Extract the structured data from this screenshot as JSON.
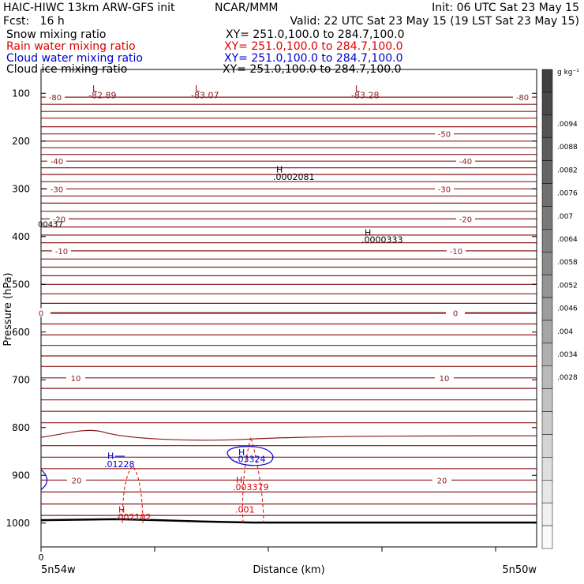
{
  "header": {
    "title": "HAIC-HIWC 13km ARW-GFS init",
    "org": "NCAR/MMM",
    "init": "Init: 06 UTC Sat 23 May 15",
    "fcst": "Fcst:   16 h",
    "valid": "Valid: 22 UTC Sat 23 May 15 (19 LST Sat 23 May 15)"
  },
  "fields": [
    {
      "name": "Snow mixing ratio",
      "xy": "XY= 251.0,100.0 to 284.7,100.0",
      "color": "#000000"
    },
    {
      "name": "Rain water mixing ratio",
      "xy": "XY= 251.0,100.0 to 284.7,100.0",
      "color": "#dd0000"
    },
    {
      "name": "Cloud water mixing ratio",
      "xy": "XY= 251.0,100.0 to 284.7,100.0",
      "color": "#0000cc"
    },
    {
      "name": "Cloud ice mixing ratio",
      "xy": "XY= 251.0,100.0 to 284.7,100.0",
      "color": "#000000"
    }
  ],
  "colorbar": {
    "unit": "g kg⁻¹",
    "labels": [
      ".0094",
      ".0088",
      ".0082",
      ".0076",
      ".007",
      ".0064",
      ".0058",
      ".0052",
      ".0046",
      ".004",
      ".0034",
      ".0028"
    ]
  },
  "chart_data": {
    "type": "line",
    "xlabel": "Distance (km)",
    "ylabel": "Pressure (hPa)",
    "x_left_label": "5n54w",
    "x_right_label": "5n50w",
    "x_zero_label": "0",
    "y_ticks": [
      100,
      200,
      300,
      400,
      500,
      600,
      700,
      800,
      900,
      1000
    ],
    "ylim": [
      1050,
      50
    ],
    "temperature_contour_labels": [
      {
        "text": "-80",
        "p": 108
      },
      {
        "text": "-80",
        "p": 108
      },
      {
        "text": "-50",
        "p": 185
      },
      {
        "text": "-40",
        "p": 242
      },
      {
        "text": "-40",
        "p": 242
      },
      {
        "text": "-30",
        "p": 300
      },
      {
        "text": "-30",
        "p": 300
      },
      {
        "text": "-20",
        "p": 363
      },
      {
        "text": "-20",
        "p": 363
      },
      {
        "text": "-10",
        "p": 430
      },
      {
        "text": "-10",
        "p": 430
      },
      {
        "text": "0",
        "p": 560
      },
      {
        "text": "0",
        "p": 560
      },
      {
        "text": "10",
        "p": 696
      },
      {
        "text": "10",
        "p": 696
      },
      {
        "text": "20",
        "p": 910
      },
      {
        "text": "20",
        "p": 910
      }
    ],
    "lows": [
      {
        "label": "L",
        "value": "-82.89"
      },
      {
        "label": "L",
        "value": "-83.07"
      },
      {
        "label": "L",
        "value": "-83.28"
      }
    ],
    "highs": [
      {
        "label": "H",
        "value": ".0002081",
        "field": "snow"
      },
      {
        "label": "H",
        "value": ".0000333",
        "field": "snow"
      },
      {
        "label": "H",
        "value": ".01228",
        "field": "cloud water"
      },
      {
        "label": "H",
        "value": ".03324",
        "field": "cloud water"
      },
      {
        "label": "H",
        "value": ".003379",
        "field": "rain water"
      },
      {
        "label": "H",
        "value": ".002102",
        "field": "rain water"
      }
    ],
    "edge_value": "00437",
    "rain_contour_label": ".001"
  }
}
